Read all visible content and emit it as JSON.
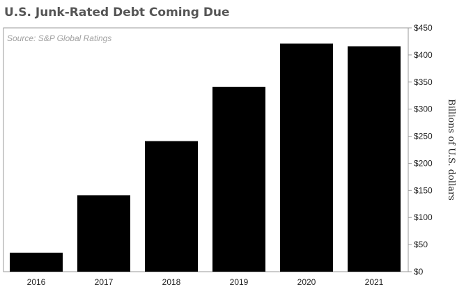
{
  "chart_data": {
    "type": "bar",
    "title": "U.S. Junk-Rated Debt Coming Due",
    "source": "Source: S&P Global Ratings",
    "ylabel": "Billions of U.S. dollars",
    "xlabel": "",
    "categories": [
      "2016",
      "2017",
      "2018",
      "2019",
      "2020",
      "2021"
    ],
    "values": [
      35,
      141,
      241,
      341,
      421,
      416
    ],
    "ylim": [
      0,
      450
    ],
    "yticks": [
      0,
      50,
      100,
      150,
      200,
      250,
      300,
      350,
      400,
      450
    ],
    "ytick_labels": [
      "$0",
      "$50",
      "$100",
      "$150",
      "$200",
      "$250",
      "$300",
      "$350",
      "$400",
      "$450"
    ],
    "y_axis_position": "right",
    "grid": false,
    "bar_color": "#000000",
    "frame_color": "#999999"
  }
}
